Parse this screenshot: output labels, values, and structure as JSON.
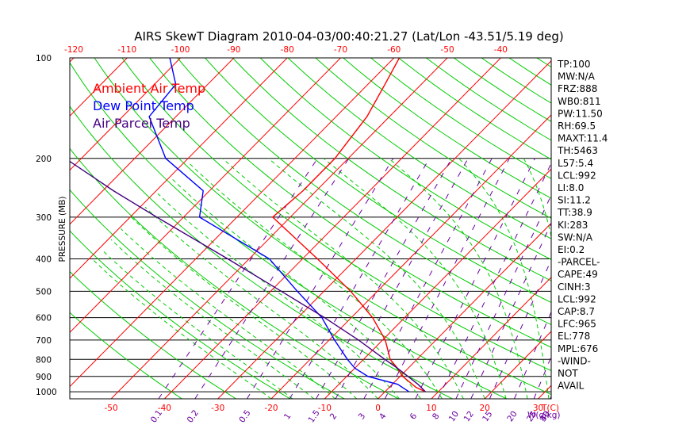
{
  "chart_data": {
    "type": "line",
    "title": "AIRS SkewT Diagram 2010-04-03/00:40:21.27 (Lat/Lon -43.51/5.19 deg)",
    "ylabel": "PRESSURE (MB)",
    "xlabel": "T(C)",
    "mixing_ratio_label": "W(g/kg)",
    "ylim": [
      1050,
      100
    ],
    "y_scale": "log",
    "pressure_ticks": [
      100,
      200,
      300,
      400,
      500,
      600,
      700,
      800,
      900,
      1000
    ],
    "top_temp_ticks": [
      "-120",
      "-110",
      "-100",
      "-90",
      "-80",
      "-70",
      "-60",
      "-50",
      "-40"
    ],
    "bottom_temp_ticks": [
      "-50",
      "-40",
      "-30",
      "-20",
      "-10",
      "0",
      "10",
      "20",
      "30"
    ],
    "mixing_ratio_ticks": [
      "0.1",
      "0.2",
      "0.5",
      "1",
      "1.5",
      "2",
      "3",
      "4",
      "6",
      "8",
      "10",
      "12",
      "15",
      "20",
      "25",
      "30",
      "40"
    ],
    "legend": [
      "Ambient Air Temp",
      "Dew Point Temp",
      "Air Parcel Temp"
    ],
    "series": [
      {
        "name": "Ambient Air Temp",
        "color": "#ff0000",
        "points": [
          [
            1000,
            7.6
          ],
          [
            970,
            5.0
          ],
          [
            900,
            0.5
          ],
          [
            850,
            -2.0
          ],
          [
            800,
            -5.0
          ],
          [
            700,
            -9.5
          ],
          [
            600,
            -16.0
          ],
          [
            500,
            -25.0
          ],
          [
            400,
            -37.2
          ],
          [
            300,
            -53.3
          ],
          [
            250,
            -52.5
          ],
          [
            200,
            -52.5
          ],
          [
            150,
            -54.2
          ],
          [
            120,
            -56.8
          ],
          [
            100,
            -59.0
          ]
        ]
      },
      {
        "name": "Dew Point Temp",
        "color": "#0000ff",
        "points": [
          [
            1000,
            4.5
          ],
          [
            950,
            1.0
          ],
          [
            900,
            -6.0
          ],
          [
            850,
            -10.0
          ],
          [
            800,
            -13.0
          ],
          [
            700,
            -19.0
          ],
          [
            600,
            -25.5
          ],
          [
            500,
            -35.0
          ],
          [
            400,
            -46.2
          ],
          [
            300,
            -67.0
          ],
          [
            250,
            -71.2
          ],
          [
            200,
            -84.2
          ],
          [
            150,
            -95.0
          ],
          [
            120,
            -96.0
          ],
          [
            100,
            -102.0
          ]
        ]
      },
      {
        "name": "Air Parcel Temp",
        "color": "#440080",
        "points": [
          [
            1000,
            7.6
          ],
          [
            950,
            4.8
          ],
          [
            900,
            1.5
          ],
          [
            850,
            -2.0
          ],
          [
            800,
            -6.0
          ],
          [
            700,
            -14.5
          ],
          [
            600,
            -25.0
          ],
          [
            500,
            -38.0
          ],
          [
            400,
            -54.0
          ],
          [
            300,
            -75.0
          ],
          [
            250,
            -88.0
          ],
          [
            200,
            -103.0
          ],
          [
            150,
            -120.0
          ],
          [
            100,
            -145.0
          ]
        ]
      }
    ],
    "colors": {
      "isotherm": "#ff0000",
      "dry_adiabat": "#00cc00",
      "moist_adiabat": "#00cc00",
      "mixing_ratio": "#6a00a0",
      "isobar": "#000000"
    }
  },
  "indices": [
    "TP:100",
    "MW:N/A",
    "FRZ:888",
    "WB0:811",
    "PW:11.50",
    "RH:69.5",
    "MAXT:11.4",
    "TH:5463",
    "L57:5.4",
    "LCL:992",
    "LI:8.0",
    "SI:11.2",
    "TT:38.9",
    "KI:283",
    "SW:N/A",
    "EI:0.2",
    "-PARCEL-",
    "CAPE:49",
    "CINH:3",
    "LCL:992",
    "CAP:8.7",
    "LFC:965",
    "EL:778",
    "MPL:676",
    "-WIND-",
    "NOT",
    "AVAIL"
  ]
}
